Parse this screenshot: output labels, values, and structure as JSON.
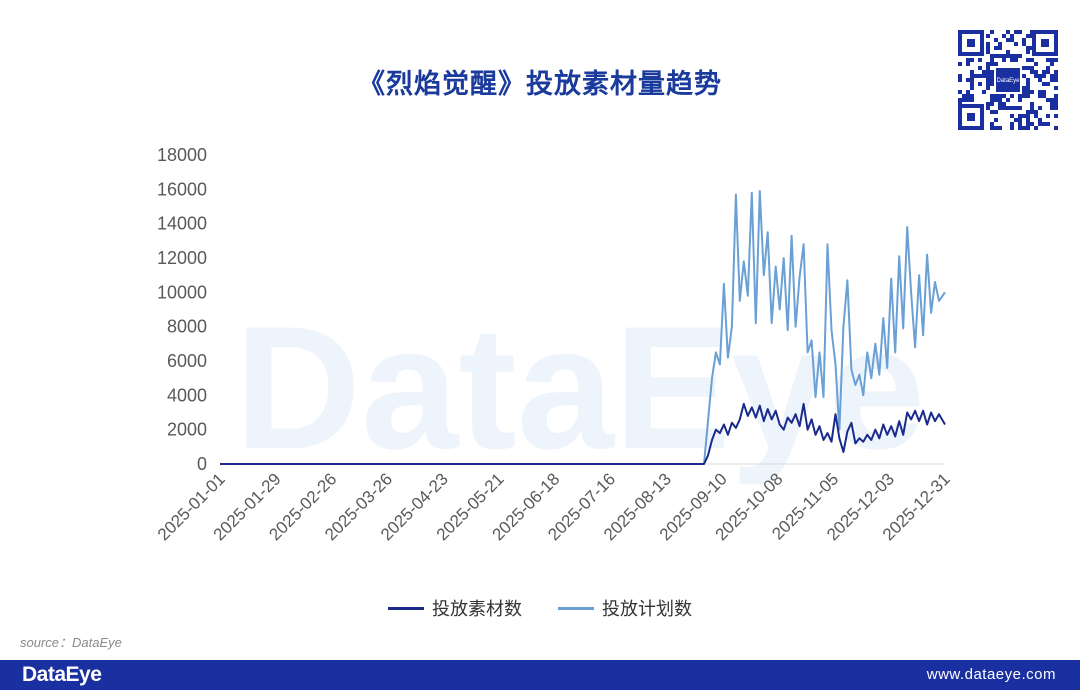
{
  "header": {
    "title": "《烈焰觉醒》投放素材量趋势"
  },
  "qr_code": {
    "center_text": "DataEye"
  },
  "watermark": {
    "text": "DataEye"
  },
  "legend": {
    "series1": "投放素材数",
    "series2": "投放计划数"
  },
  "source": {
    "text": "source：DataEye"
  },
  "footer": {
    "logo": "DataEye",
    "url": "www.dataeye.com",
    "background": "#1a2fa0"
  },
  "colors": {
    "series1": "#1a2b8c",
    "series2": "#6aa0d6",
    "title": "#1a3a9c"
  },
  "chart_data": {
    "type": "line",
    "title": "《烈焰觉醒》投放素材量趋势",
    "xlabel": "",
    "ylabel": "",
    "ylim": [
      0,
      18000
    ],
    "y_ticks": [
      "0",
      "2000",
      "4000",
      "6000",
      "8000",
      "10000",
      "12000",
      "14000",
      "16000",
      "18000"
    ],
    "x_range": [
      "2025-01-01",
      "2025-12-31"
    ],
    "x_ticks": [
      "2025-01-01",
      "2025-01-29",
      "2025-02-26",
      "2025-03-26",
      "2025-04-23",
      "2025-05-21",
      "2025-06-18",
      "2025-07-16",
      "2025-08-13",
      "2025-09-10",
      "2025-10-08",
      "2025-11-05",
      "2025-12-03",
      "2025-12-31"
    ],
    "grid": false,
    "legend_position": "bottom",
    "series": [
      {
        "name": "投放素材数",
        "points": [
          [
            "2025-01-01",
            0
          ],
          [
            "2025-09-01",
            0
          ],
          [
            "2025-09-03",
            500
          ],
          [
            "2025-09-05",
            1400
          ],
          [
            "2025-09-07",
            2000
          ],
          [
            "2025-09-09",
            1800
          ],
          [
            "2025-09-11",
            2300
          ],
          [
            "2025-09-13",
            1700
          ],
          [
            "2025-09-15",
            2400
          ],
          [
            "2025-09-17",
            2100
          ],
          [
            "2025-09-19",
            2600
          ],
          [
            "2025-09-21",
            3500
          ],
          [
            "2025-09-23",
            2800
          ],
          [
            "2025-09-25",
            3300
          ],
          [
            "2025-09-27",
            2700
          ],
          [
            "2025-09-29",
            3400
          ],
          [
            "2025-10-01",
            2500
          ],
          [
            "2025-10-03",
            3200
          ],
          [
            "2025-10-05",
            2600
          ],
          [
            "2025-10-07",
            3100
          ],
          [
            "2025-10-09",
            2300
          ],
          [
            "2025-10-11",
            2000
          ],
          [
            "2025-10-13",
            2700
          ],
          [
            "2025-10-15",
            2400
          ],
          [
            "2025-10-17",
            2900
          ],
          [
            "2025-10-19",
            2200
          ],
          [
            "2025-10-21",
            3500
          ],
          [
            "2025-10-23",
            2000
          ],
          [
            "2025-10-25",
            2600
          ],
          [
            "2025-10-27",
            1700
          ],
          [
            "2025-10-29",
            2200
          ],
          [
            "2025-10-31",
            1400
          ],
          [
            "2025-11-02",
            1800
          ],
          [
            "2025-11-04",
            1300
          ],
          [
            "2025-11-06",
            2900
          ],
          [
            "2025-11-08",
            1500
          ],
          [
            "2025-11-10",
            700
          ],
          [
            "2025-11-12",
            1900
          ],
          [
            "2025-11-14",
            2400
          ],
          [
            "2025-11-16",
            1200
          ],
          [
            "2025-11-18",
            1500
          ],
          [
            "2025-11-20",
            1300
          ],
          [
            "2025-11-22",
            1700
          ],
          [
            "2025-11-24",
            1400
          ],
          [
            "2025-11-26",
            2000
          ],
          [
            "2025-11-28",
            1500
          ],
          [
            "2025-11-30",
            2300
          ],
          [
            "2025-12-02",
            1700
          ],
          [
            "2025-12-04",
            2200
          ],
          [
            "2025-12-06",
            1600
          ],
          [
            "2025-12-08",
            2500
          ],
          [
            "2025-12-10",
            1700
          ],
          [
            "2025-12-12",
            3000
          ],
          [
            "2025-12-14",
            2600
          ],
          [
            "2025-12-16",
            3100
          ],
          [
            "2025-12-18",
            2500
          ],
          [
            "2025-12-20",
            3100
          ],
          [
            "2025-12-22",
            2300
          ],
          [
            "2025-12-24",
            3000
          ],
          [
            "2025-12-26",
            2500
          ],
          [
            "2025-12-28",
            2900
          ],
          [
            "2025-12-31",
            2300
          ]
        ]
      },
      {
        "name": "投放计划数",
        "points": [
          [
            "2025-01-01",
            0
          ],
          [
            "2025-09-01",
            0
          ],
          [
            "2025-09-03",
            2500
          ],
          [
            "2025-09-05",
            5000
          ],
          [
            "2025-09-07",
            6500
          ],
          [
            "2025-09-09",
            5800
          ],
          [
            "2025-09-11",
            10500
          ],
          [
            "2025-09-13",
            6200
          ],
          [
            "2025-09-15",
            8000
          ],
          [
            "2025-09-17",
            15700
          ],
          [
            "2025-09-19",
            9500
          ],
          [
            "2025-09-21",
            11800
          ],
          [
            "2025-09-23",
            9800
          ],
          [
            "2025-09-25",
            15800
          ],
          [
            "2025-09-27",
            8200
          ],
          [
            "2025-09-29",
            15900
          ],
          [
            "2025-10-01",
            11000
          ],
          [
            "2025-10-03",
            13500
          ],
          [
            "2025-10-05",
            8200
          ],
          [
            "2025-10-07",
            11500
          ],
          [
            "2025-10-09",
            9000
          ],
          [
            "2025-10-11",
            12000
          ],
          [
            "2025-10-13",
            7800
          ],
          [
            "2025-10-15",
            13300
          ],
          [
            "2025-10-17",
            8000
          ],
          [
            "2025-10-19",
            10900
          ],
          [
            "2025-10-21",
            12800
          ],
          [
            "2025-10-23",
            6500
          ],
          [
            "2025-10-25",
            7200
          ],
          [
            "2025-10-27",
            3900
          ],
          [
            "2025-10-29",
            6500
          ],
          [
            "2025-10-31",
            3900
          ],
          [
            "2025-11-02",
            12800
          ],
          [
            "2025-11-04",
            7800
          ],
          [
            "2025-11-06",
            5800
          ],
          [
            "2025-11-08",
            2000
          ],
          [
            "2025-11-10",
            8000
          ],
          [
            "2025-11-12",
            10700
          ],
          [
            "2025-11-14",
            5500
          ],
          [
            "2025-11-16",
            4600
          ],
          [
            "2025-11-18",
            5200
          ],
          [
            "2025-11-20",
            4000
          ],
          [
            "2025-11-22",
            6500
          ],
          [
            "2025-11-24",
            5000
          ],
          [
            "2025-11-26",
            7000
          ],
          [
            "2025-11-28",
            5200
          ],
          [
            "2025-11-30",
            8500
          ],
          [
            "2025-12-02",
            5600
          ],
          [
            "2025-12-04",
            10800
          ],
          [
            "2025-12-06",
            6500
          ],
          [
            "2025-12-08",
            12100
          ],
          [
            "2025-12-10",
            7900
          ],
          [
            "2025-12-12",
            13800
          ],
          [
            "2025-12-14",
            10000
          ],
          [
            "2025-12-16",
            6800
          ],
          [
            "2025-12-18",
            11000
          ],
          [
            "2025-12-20",
            7500
          ],
          [
            "2025-12-22",
            12200
          ],
          [
            "2025-12-24",
            8800
          ],
          [
            "2025-12-26",
            10600
          ],
          [
            "2025-12-28",
            9500
          ],
          [
            "2025-12-31",
            10000
          ]
        ]
      }
    ]
  }
}
